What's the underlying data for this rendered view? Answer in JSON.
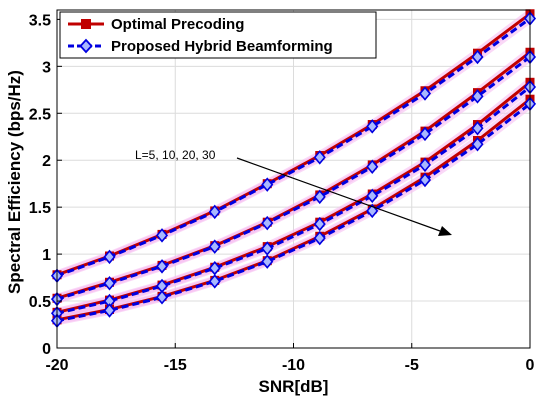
{
  "chart_data": {
    "type": "line",
    "xlabel": "SNR[dB]",
    "ylabel": "Spectral Efficiency (bps/Hz)",
    "xlim": [
      -20,
      0
    ],
    "ylim": [
      0,
      3.6
    ],
    "xticks": [
      -20,
      -15,
      -10,
      -5,
      0
    ],
    "yticks": [
      0,
      0.5,
      1,
      1.5,
      2,
      2.5,
      3,
      3.5
    ],
    "grid": true,
    "legend_position": "top-left",
    "annotation": "L=5, 10, 20, 30",
    "x": [
      -20,
      -17.78,
      -15.56,
      -13.33,
      -11.11,
      -8.89,
      -6.67,
      -4.44,
      -2.22,
      0
    ],
    "series": [
      {
        "name": "Optimal Precoding",
        "color": "#c00000",
        "marker": "square",
        "line": "solid",
        "curves": [
          [
            0.78,
            0.98,
            1.21,
            1.46,
            1.75,
            2.05,
            2.38,
            2.74,
            3.14,
            3.56
          ],
          [
            0.53,
            0.7,
            0.88,
            1.09,
            1.34,
            1.63,
            1.95,
            2.31,
            2.72,
            3.15
          ],
          [
            0.38,
            0.51,
            0.67,
            0.86,
            1.08,
            1.34,
            1.64,
            1.98,
            2.38,
            2.83
          ],
          [
            0.3,
            0.41,
            0.55,
            0.72,
            0.93,
            1.19,
            1.48,
            1.82,
            2.21,
            2.65
          ]
        ]
      },
      {
        "name": "Proposed Hybrid Beamforming",
        "color": "#0000e0",
        "marker": "diamond",
        "line": "dashed",
        "curves": [
          [
            0.77,
            0.97,
            1.2,
            1.45,
            1.74,
            2.03,
            2.36,
            2.71,
            3.1,
            3.51
          ],
          [
            0.52,
            0.69,
            0.87,
            1.08,
            1.33,
            1.61,
            1.93,
            2.28,
            2.68,
            3.1
          ],
          [
            0.37,
            0.5,
            0.66,
            0.85,
            1.06,
            1.32,
            1.62,
            1.95,
            2.34,
            2.78
          ],
          [
            0.29,
            0.4,
            0.54,
            0.71,
            0.92,
            1.17,
            1.46,
            1.79,
            2.17,
            2.6
          ]
        ]
      }
    ]
  }
}
